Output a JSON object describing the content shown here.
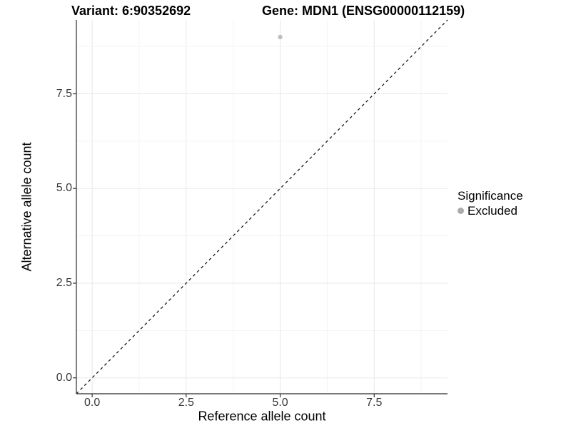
{
  "header": {
    "variant_title": "Variant: 6:90352692",
    "gene_title": "Gene: MDN1 (ENSG00000112159)"
  },
  "chart_data": {
    "type": "scatter",
    "title": "Variant: 6:90352692 — Gene: MDN1 (ENSG00000112159)",
    "xlabel": "Reference allele count",
    "ylabel": "Alternative allele count",
    "xlim": [
      -0.42,
      9.45
    ],
    "ylim": [
      -0.42,
      9.45
    ],
    "x_ticks": [
      {
        "value": 0,
        "label": "0.0"
      },
      {
        "value": 2.5,
        "label": "2.5"
      },
      {
        "value": 5,
        "label": "5.0"
      },
      {
        "value": 7.5,
        "label": "7.5"
      }
    ],
    "y_ticks": [
      {
        "value": 0,
        "label": "0.0"
      },
      {
        "value": 2.5,
        "label": "2.5"
      },
      {
        "value": 5,
        "label": "5.0"
      },
      {
        "value": 7.5,
        "label": "7.5"
      }
    ],
    "x_minor": [
      1.25,
      3.75,
      6.25,
      8.75
    ],
    "y_minor": [
      1.25,
      3.75,
      6.25,
      8.75
    ],
    "grid": true,
    "series": [
      {
        "name": "Excluded",
        "color": "#bfbfbf",
        "point_radius": 3.2,
        "points": [
          {
            "x": 5,
            "y": 9
          }
        ]
      }
    ],
    "reference_line": {
      "type": "identity",
      "slope": 1,
      "intercept": 0,
      "style": "dashed",
      "color": "#1a1a1a"
    },
    "legend": {
      "title": "Significance",
      "position": "right",
      "items": [
        {
          "label": "Excluded",
          "color": "#ababab"
        }
      ]
    }
  },
  "colors": {
    "background": "#ffffff",
    "grid_major": "#e8e8e8",
    "grid_minor": "#f3f3f3",
    "axis": "#2b2b2b",
    "tick": "#333333",
    "point": "#bfbfbf",
    "legend_dot": "#ababab"
  }
}
